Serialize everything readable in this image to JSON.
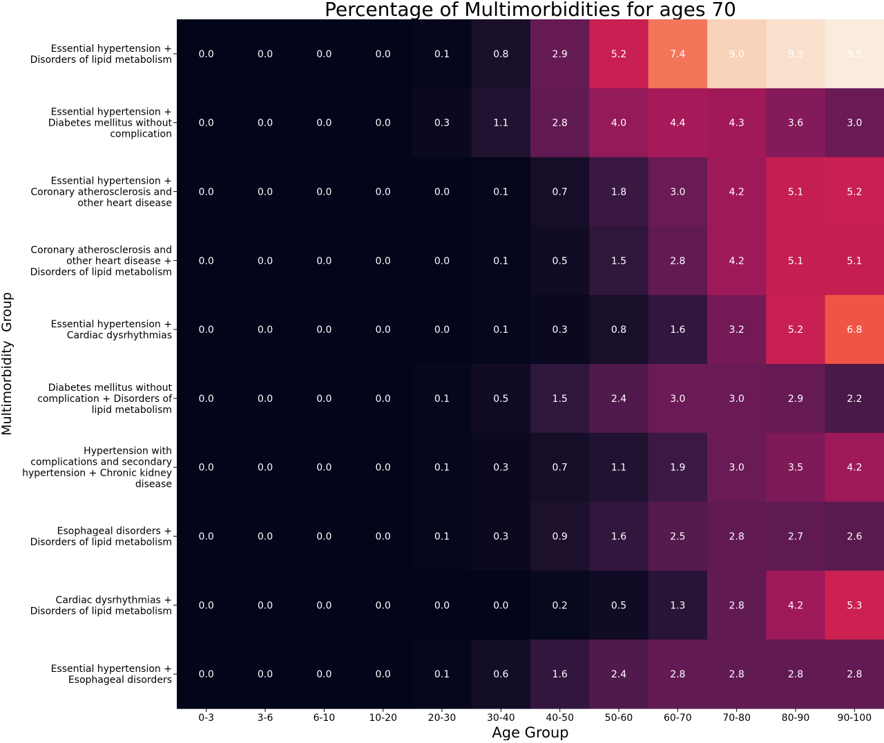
{
  "chart_data": {
    "type": "heatmap",
    "title": "Percentage of Multimorbidities for ages 70",
    "xlabel": "Age Group",
    "ylabel": "Multimorbidity  Group",
    "x_categories": [
      "0-3",
      "3-6",
      "6-10",
      "10-20",
      "20-30",
      "30-40",
      "40-50",
      "50-60",
      "60-70",
      "70-80",
      "80-90",
      "90-100"
    ],
    "y_categories": [
      [
        "Essential hypertension +",
        "Disorders of lipid metabolism"
      ],
      [
        "Essential hypertension +",
        "Diabetes mellitus without",
        "complication"
      ],
      [
        "Essential hypertension +",
        "Coronary atherosclerosis and",
        "other heart disease"
      ],
      [
        "Coronary atherosclerosis and",
        "other heart disease +",
        "Disorders of lipid metabolism"
      ],
      [
        "Essential hypertension +",
        "Cardiac dysrhythmias"
      ],
      [
        "Diabetes mellitus without",
        "complication + Disorders of",
        "lipid metabolism"
      ],
      [
        "Hypertension with",
        "complications and secondary",
        "hypertension + Chronic kidney",
        "disease"
      ],
      [
        "Esophageal disorders +",
        "Disorders of lipid metabolism"
      ],
      [
        "Cardiac dysrhythmias +",
        "Disorders of lipid metabolism"
      ],
      [
        "Essential hypertension +",
        "Esophageal disorders"
      ]
    ],
    "values": [
      [
        0.0,
        0.0,
        0.0,
        0.0,
        0.1,
        0.8,
        2.9,
        5.2,
        7.4,
        9.0,
        9.3,
        9.5
      ],
      [
        0.0,
        0.0,
        0.0,
        0.0,
        0.3,
        1.1,
        2.8,
        4.0,
        4.4,
        4.3,
        3.6,
        3.0
      ],
      [
        0.0,
        0.0,
        0.0,
        0.0,
        0.0,
        0.1,
        0.7,
        1.8,
        3.0,
        4.2,
        5.1,
        5.2
      ],
      [
        0.0,
        0.0,
        0.0,
        0.0,
        0.0,
        0.1,
        0.5,
        1.5,
        2.8,
        4.2,
        5.1,
        5.1
      ],
      [
        0.0,
        0.0,
        0.0,
        0.0,
        0.0,
        0.1,
        0.3,
        0.8,
        1.6,
        3.2,
        5.2,
        6.8
      ],
      [
        0.0,
        0.0,
        0.0,
        0.0,
        0.1,
        0.5,
        1.5,
        2.4,
        3.0,
        3.0,
        2.9,
        2.2
      ],
      [
        0.0,
        0.0,
        0.0,
        0.0,
        0.1,
        0.3,
        0.7,
        1.1,
        1.9,
        3.0,
        3.5,
        4.2
      ],
      [
        0.0,
        0.0,
        0.0,
        0.0,
        0.1,
        0.3,
        0.9,
        1.6,
        2.5,
        2.8,
        2.7,
        2.6
      ],
      [
        0.0,
        0.0,
        0.0,
        0.0,
        0.0,
        0.0,
        0.2,
        0.5,
        1.3,
        2.8,
        4.2,
        5.3
      ],
      [
        0.0,
        0.0,
        0.0,
        0.0,
        0.1,
        0.6,
        1.6,
        2.4,
        2.8,
        2.8,
        2.8,
        2.8
      ]
    ],
    "value_range": [
      0,
      9.5
    ],
    "colormap": "rocket",
    "annotation_color": "#ffffff",
    "grid": false,
    "colorbar": false
  }
}
